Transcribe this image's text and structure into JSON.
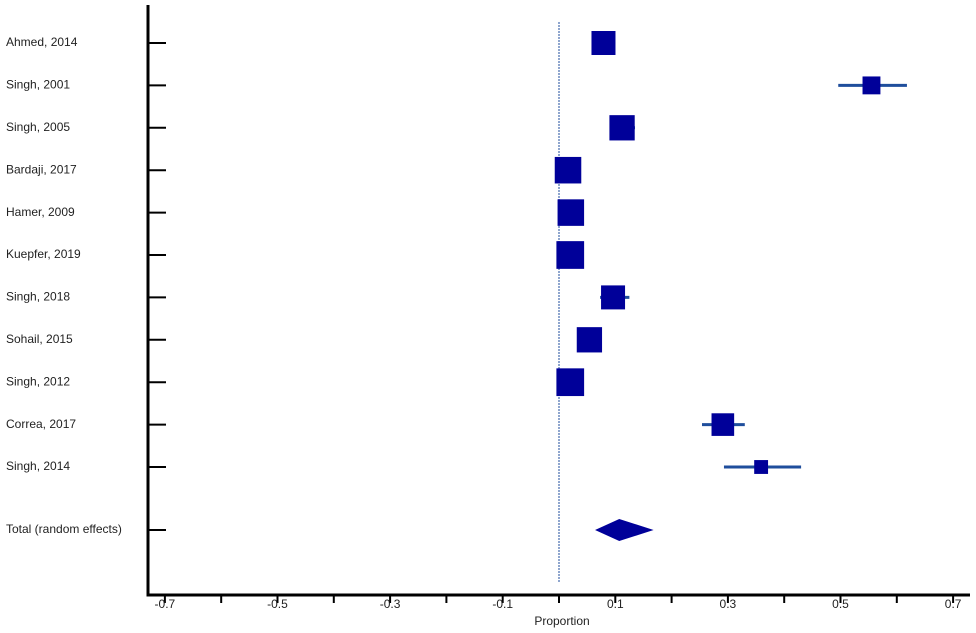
{
  "chart_data": {
    "type": "forest",
    "xlabel": "Proportion",
    "categories": [
      "Ahmed, 2014",
      "Singh, 2001",
      "Singh, 2005",
      "Bardaji, 2017",
      "Hamer, 2009",
      "Kuepfer, 2019",
      "Singh, 2018",
      "Sohail, 2015",
      "Singh, 2012",
      "Correa, 2017",
      "Singh, 2014"
    ],
    "values": [
      0.079,
      0.555,
      0.112,
      0.016,
      0.021,
      0.02,
      0.096,
      0.054,
      0.02,
      0.291,
      0.359
    ],
    "ci_lower": [
      0.06,
      0.496,
      0.09,
      0.005,
      0.008,
      0.007,
      0.073,
      0.035,
      0.007,
      0.254,
      0.293
    ],
    "ci_upper": [
      0.1,
      0.618,
      0.135,
      0.03,
      0.035,
      0.034,
      0.125,
      0.075,
      0.034,
      0.33,
      0.43
    ],
    "weights": [
      9,
      5,
      10,
      11,
      11,
      12,
      9,
      10,
      12,
      8,
      3
    ],
    "pooled": {
      "label": "Total (random effects)",
      "value": 0.107,
      "ci_lower": 0.064,
      "ci_upper": 0.168
    },
    "reference_line": 0,
    "xlim": [
      -0.73,
      0.73
    ],
    "xticks": [
      -0.7,
      -0.5,
      -0.3,
      -0.1,
      0.1,
      0.3,
      0.5,
      0.7
    ],
    "xminorticks": [
      -0.6,
      -0.4,
      -0.2,
      0,
      0.2,
      0.4,
      0.6
    ],
    "marker_color": "#000099",
    "ci_color": "#1f4e9c"
  }
}
